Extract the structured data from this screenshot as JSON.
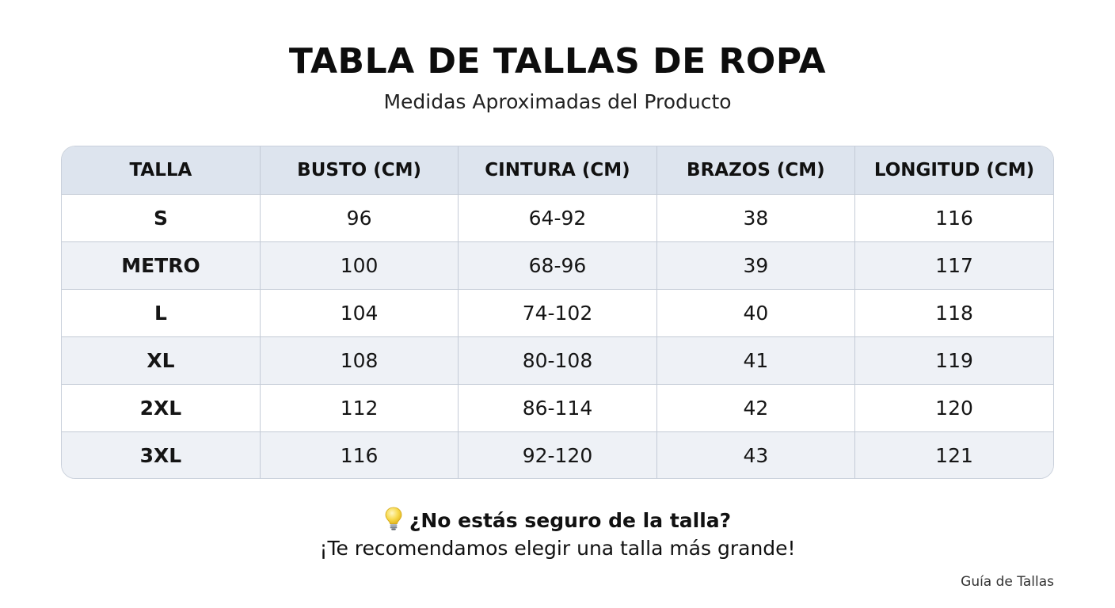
{
  "header": {
    "title": "TABLA DE TALLAS DE ROPA",
    "subtitle": "Medidas Aproximadas del Producto"
  },
  "table": {
    "columns": [
      "TALLA",
      "BUSTO (CM)",
      "CINTURA (CM)",
      "BRAZOS (CM)",
      "LONGITUD (CM)"
    ],
    "rows": [
      [
        "S",
        "96",
        "64-92",
        "38",
        "116"
      ],
      [
        "METRO",
        "100",
        "68-96",
        "39",
        "117"
      ],
      [
        "L",
        "104",
        "74-102",
        "40",
        "118"
      ],
      [
        "XL",
        "108",
        "80-108",
        "41",
        "119"
      ],
      [
        "2XL",
        "112",
        "86-114",
        "42",
        "120"
      ],
      [
        "3XL",
        "116",
        "92-120",
        "43",
        "121"
      ]
    ]
  },
  "tip": {
    "icon": "lightbulb-icon",
    "question": "¿No estás seguro de la talla?",
    "recommendation": "¡Te recomendamos elegir una talla más grande!"
  },
  "footer": {
    "note": "Guía de Tallas"
  },
  "colors": {
    "header_row_bg": "#dde4ee",
    "alt_row_bg": "#eef1f6",
    "border": "#c4cbd6"
  }
}
